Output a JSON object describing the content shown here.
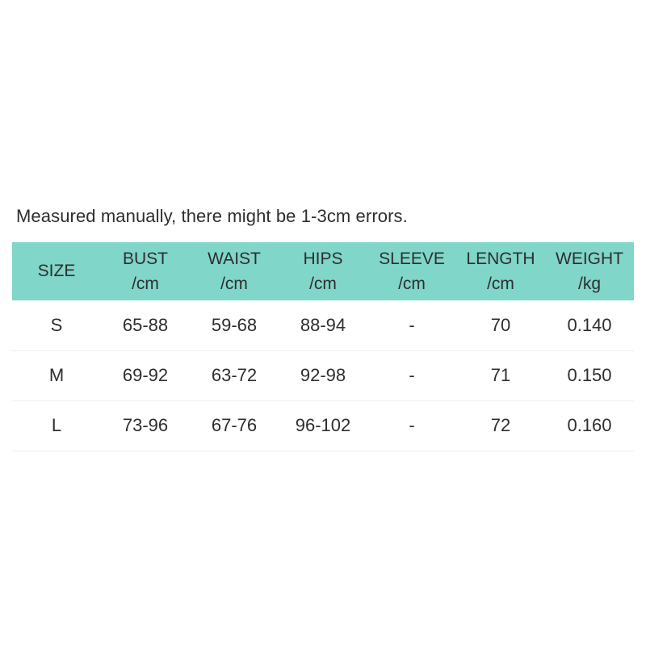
{
  "note": "Measured manually, there might be 1-3cm errors.",
  "chart_data": {
    "type": "table",
    "title": "Measured manually, there might be 1-3cm errors.",
    "columns": [
      {
        "label": "SIZE",
        "unit": ""
      },
      {
        "label": "BUST",
        "unit": "/cm"
      },
      {
        "label": "WAIST",
        "unit": "/cm"
      },
      {
        "label": "HIPS",
        "unit": "/cm"
      },
      {
        "label": "SLEEVE",
        "unit": "/cm"
      },
      {
        "label": "LENGTH",
        "unit": "/cm"
      },
      {
        "label": "WEIGHT",
        "unit": "/kg"
      }
    ],
    "rows": [
      [
        "S",
        "65-88",
        "59-68",
        "88-94",
        "-",
        "70",
        "0.140"
      ],
      [
        "M",
        "69-92",
        "63-72",
        "92-98",
        "-",
        "71",
        "0.150"
      ],
      [
        "L",
        "73-96",
        "67-76",
        "96-102",
        "-",
        "72",
        "0.160"
      ]
    ],
    "legend": "none",
    "grid": "horizontal-row-dividers-only"
  },
  "colors": {
    "background": "#ffffff",
    "header_bg": "#7fd6c9",
    "text": "#2e2e2e",
    "row_divider": "#ededed"
  }
}
